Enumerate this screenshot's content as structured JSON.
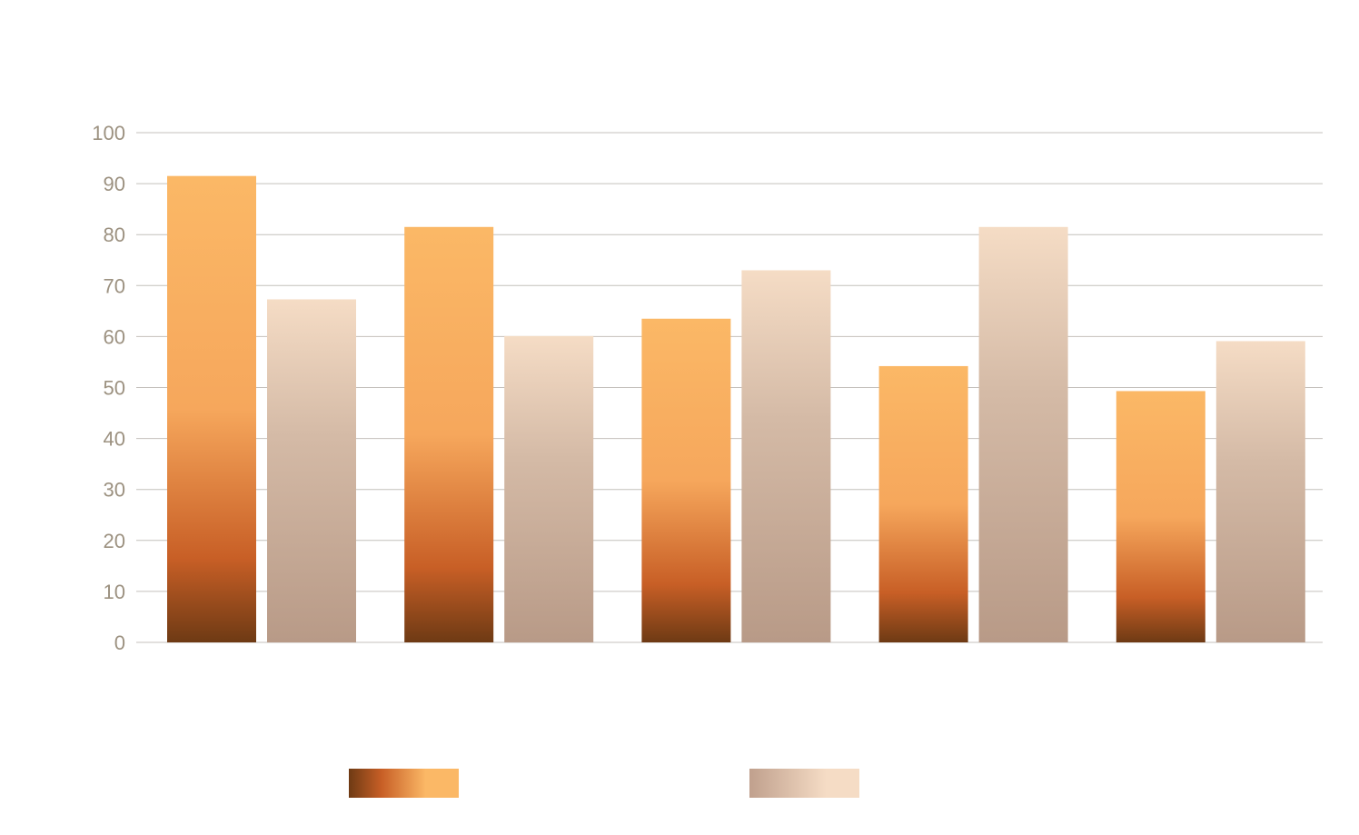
{
  "chart_data": {
    "type": "bar",
    "categories": [
      "",
      "",
      "",
      "",
      ""
    ],
    "series": [
      {
        "values": [
          91.5,
          81.5,
          63.5,
          54.2,
          49.3
        ]
      },
      {
        "values": [
          67.3,
          60.1,
          73.0,
          81.5,
          59.1
        ]
      }
    ],
    "title": "",
    "xlabel": "",
    "ylabel": "",
    "ylim": [
      0,
      100
    ],
    "yticks": [
      0,
      10,
      20,
      30,
      40,
      50,
      60,
      70,
      80,
      90,
      100
    ],
    "grid": true,
    "legend_position": "bottom",
    "colors": {
      "series_1": [
        "#6e3a14",
        "#c85f26",
        "#f6a75c",
        "#fbb866"
      ],
      "series_2": [
        "#b89a87",
        "#cfb3a0",
        "#f5dcc5"
      ],
      "tick_text": "#9c9180",
      "grid": "#c4c0bc"
    }
  }
}
